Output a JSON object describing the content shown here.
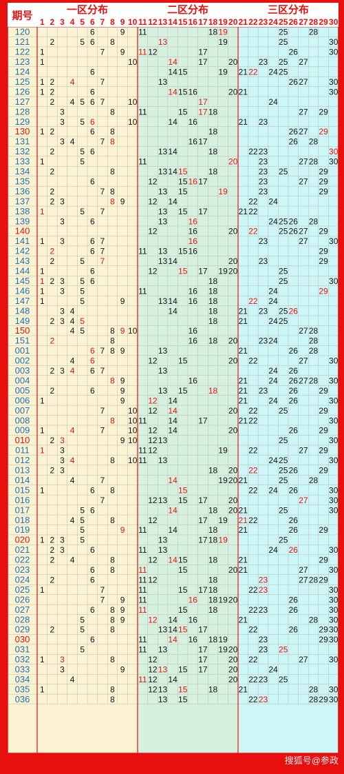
{
  "title": {
    "issue_label": "期号",
    "zone1": "一区分布",
    "zone2": "二区分布",
    "zone3": "三区分布"
  },
  "columns": [
    "1",
    "2",
    "3",
    "4",
    "5",
    "6",
    "7",
    "8",
    "9",
    "10",
    "11",
    "12",
    "13",
    "14",
    "15",
    "16",
    "17",
    "18",
    "19",
    "20",
    "21",
    "22",
    "23",
    "24",
    "25",
    "26",
    "27",
    "28",
    "29",
    "30"
  ],
  "watermark": "搜狐号@参政",
  "colors": {
    "frame": "#e8100e",
    "zone1_bg": "#fbf3d2",
    "zone2_bg": "#d7f1df",
    "zone3_bg": "#cdf6f6",
    "left_bg": "#fbf3d2",
    "issue_text": "#1d6fae",
    "hot": "#e8100e",
    "cold": "#111111",
    "grid": "#b9b9b9"
  },
  "chart_data": {
    "type": "table",
    "title": "",
    "rows": [
      {
        "issue": "120",
        "numbers": [
          6,
          9,
          11,
          18,
          19,
          25,
          28
        ],
        "highlight": [
          19
        ]
      },
      {
        "issue": "121",
        "numbers": [
          2,
          5,
          6,
          8,
          13,
          19,
          25,
          30
        ],
        "highlight": [
          13
        ]
      },
      {
        "issue": "122",
        "numbers": [
          1,
          7,
          9,
          11,
          12,
          17,
          26,
          30
        ],
        "highlight": [
          11
        ]
      },
      {
        "issue": "123",
        "numbers": [
          1,
          10,
          14,
          17,
          20,
          23,
          25,
          27
        ],
        "highlight": [
          14
        ]
      },
      {
        "issue": "124",
        "numbers": [
          6,
          14,
          15,
          19,
          21,
          22,
          24,
          25
        ],
        "highlight": [
          22
        ]
      },
      {
        "issue": "125",
        "numbers": [
          1,
          2,
          4,
          7,
          13,
          26,
          27,
          30
        ],
        "highlight": [
          4
        ]
      },
      {
        "issue": "126",
        "numbers": [
          1,
          2,
          6,
          14,
          15,
          16,
          20,
          21,
          30
        ],
        "highlight": [
          14
        ]
      },
      {
        "issue": "127",
        "numbers": [
          2,
          4,
          5,
          6,
          7,
          10,
          17,
          24
        ],
        "highlight": [
          17
        ]
      },
      {
        "issue": "128",
        "numbers": [
          3,
          8,
          11,
          15,
          17,
          18,
          27,
          29
        ],
        "highlight": [
          17
        ]
      },
      {
        "issue": "129",
        "numbers": [
          3,
          5,
          6,
          10,
          14,
          16,
          21,
          23
        ],
        "highlight": [
          6
        ]
      },
      {
        "issue": "130",
        "numbers": [
          1,
          2,
          6,
          8,
          18,
          26,
          27,
          29
        ],
        "highlight": [
          29
        ]
      },
      {
        "issue": "131",
        "numbers": [
          3,
          4,
          7,
          8,
          16,
          17,
          26,
          28
        ],
        "highlight": [
          8
        ]
      },
      {
        "issue": "132",
        "numbers": [
          2,
          5,
          6,
          13,
          14,
          18,
          22,
          23,
          30
        ],
        "highlight": [
          30
        ]
      },
      {
        "issue": "133",
        "numbers": [
          1,
          5,
          11,
          20,
          23,
          27,
          28,
          30
        ],
        "highlight": [
          20
        ]
      },
      {
        "issue": "134",
        "numbers": [
          2,
          8,
          13,
          14,
          15,
          18,
          23,
          25,
          29
        ],
        "highlight": [
          15
        ]
      },
      {
        "issue": "135",
        "numbers": [
          6,
          12,
          15,
          16,
          17,
          23,
          27,
          29
        ],
        "highlight": [
          16
        ]
      },
      {
        "issue": "136",
        "numbers": [
          2,
          7,
          8,
          13,
          15,
          19,
          23,
          29
        ],
        "highlight": [
          19
        ]
      },
      {
        "issue": "137",
        "numbers": [
          2,
          3,
          8,
          9,
          12,
          14,
          22,
          24
        ],
        "highlight": [
          8
        ]
      },
      {
        "issue": "138",
        "numbers": [
          1,
          5,
          7,
          13,
          15,
          17,
          21,
          22
        ],
        "highlight": [
          1
        ]
      },
      {
        "issue": "139",
        "numbers": [
          3,
          6,
          13,
          16,
          24,
          25,
          26,
          28
        ],
        "highlight": [
          16
        ]
      },
      {
        "issue": "140",
        "numbers": [
          12,
          16,
          20,
          22,
          25,
          26,
          27,
          29
        ],
        "highlight": [
          22
        ]
      },
      {
        "issue": "141",
        "numbers": [
          1,
          3,
          6,
          7,
          16,
          23,
          27,
          30
        ],
        "highlight": [
          16
        ]
      },
      {
        "issue": "142",
        "numbers": [
          2,
          6,
          7,
          11,
          13,
          15,
          16,
          29
        ],
        "highlight": [
          2
        ]
      },
      {
        "issue": "143",
        "numbers": [
          2,
          5,
          7,
          13,
          14,
          20,
          23,
          29
        ],
        "highlight": [
          7
        ]
      },
      {
        "issue": "144",
        "numbers": [
          1,
          6,
          12,
          15,
          17,
          19,
          20,
          25
        ],
        "highlight": [
          15
        ]
      },
      {
        "issue": "145",
        "numbers": [
          1,
          2,
          3,
          5,
          6,
          18,
          25,
          30
        ],
        "highlight": [
          1
        ]
      },
      {
        "issue": "146",
        "numbers": [
          1,
          3,
          5,
          11,
          16,
          18,
          24,
          29
        ],
        "highlight": [
          29
        ]
      },
      {
        "issue": "147",
        "numbers": [
          1,
          5,
          9,
          13,
          14,
          16,
          18,
          22,
          24
        ],
        "highlight": [
          22
        ]
      },
      {
        "issue": "148",
        "numbers": [
          3,
          4,
          14,
          18,
          21,
          23,
          25,
          26
        ],
        "highlight": [
          26
        ]
      },
      {
        "issue": "149",
        "numbers": [
          2,
          3,
          4,
          5,
          18,
          21,
          24,
          25
        ],
        "highlight": [
          5
        ]
      },
      {
        "issue": "150",
        "numbers": [
          4,
          5,
          8,
          9,
          10,
          16,
          27,
          28
        ],
        "highlight": [
          9
        ]
      },
      {
        "issue": "151",
        "numbers": [
          2,
          8,
          16,
          18,
          20,
          23,
          24,
          28
        ],
        "highlight": [
          2
        ]
      },
      {
        "issue": "001",
        "numbers": [
          6,
          7,
          8,
          9,
          13,
          21,
          26,
          28
        ],
        "highlight": [
          6
        ]
      },
      {
        "issue": "002",
        "numbers": [
          4,
          6,
          12,
          15,
          20,
          22,
          27,
          30
        ],
        "highlight": [
          6
        ]
      },
      {
        "issue": "003",
        "numbers": [
          2,
          3,
          4,
          6,
          7,
          13,
          24,
          26
        ],
        "highlight": [
          4
        ]
      },
      {
        "issue": "004",
        "numbers": [
          8,
          9,
          16,
          21,
          24,
          26,
          27,
          28,
          30
        ],
        "highlight": [
          8
        ]
      },
      {
        "issue": "005",
        "numbers": [
          2,
          6,
          9,
          13,
          15,
          18,
          21,
          23,
          26,
          29
        ],
        "highlight": [
          18
        ]
      },
      {
        "issue": "006",
        "numbers": [
          1,
          9,
          12,
          14,
          21,
          24,
          26,
          30
        ],
        "highlight": [
          12
        ]
      },
      {
        "issue": "007",
        "numbers": [
          7,
          10,
          12,
          14,
          20,
          22,
          25,
          29
        ],
        "highlight": [
          14
        ]
      },
      {
        "issue": "008",
        "numbers": [
          8,
          10,
          11,
          14,
          17,
          21,
          22,
          30
        ],
        "highlight": [
          8
        ]
      },
      {
        "issue": "009",
        "numbers": [
          1,
          4,
          7,
          10,
          12,
          14,
          20,
          26,
          29
        ],
        "highlight": [
          4
        ]
      },
      {
        "issue": "010",
        "numbers": [
          2,
          3,
          9,
          10,
          12,
          13,
          25,
          30
        ],
        "highlight": [
          3
        ]
      },
      {
        "issue": "011",
        "numbers": [
          1,
          3,
          11,
          12,
          19,
          22,
          27,
          29
        ],
        "highlight": [
          1
        ]
      },
      {
        "issue": "012",
        "numbers": [
          3,
          4,
          8,
          10,
          11,
          13,
          24,
          25,
          30
        ],
        "highlight": [
          4
        ]
      },
      {
        "issue": "013",
        "numbers": [
          2,
          3,
          18,
          20,
          22,
          25,
          26,
          29
        ],
        "highlight": [
          22
        ]
      },
      {
        "issue": "014",
        "numbers": [
          4,
          7,
          14,
          19,
          20,
          21,
          25,
          28
        ],
        "highlight": [
          14
        ]
      },
      {
        "issue": "015",
        "numbers": [
          1,
          6,
          8,
          15,
          22,
          24,
          26,
          30
        ],
        "highlight": [
          15
        ]
      },
      {
        "issue": "016",
        "numbers": [
          7,
          12,
          13,
          15,
          17,
          20,
          27,
          30
        ],
        "highlight": [
          27
        ]
      },
      {
        "issue": "017",
        "numbers": [
          5,
          6,
          14,
          18,
          20,
          21,
          25,
          30
        ],
        "highlight": [
          14
        ]
      },
      {
        "issue": "018",
        "numbers": [
          4,
          5,
          8,
          12,
          17,
          19,
          21,
          22,
          26
        ],
        "highlight": [
          21
        ]
      },
      {
        "issue": "019",
        "numbers": [
          5,
          9,
          11,
          14,
          18,
          21,
          26,
          29
        ],
        "highlight": [
          9
        ]
      },
      {
        "issue": "020",
        "numbers": [
          1,
          2,
          3,
          5,
          13,
          17,
          18,
          19,
          25
        ],
        "highlight": [
          19
        ]
      },
      {
        "issue": "021",
        "numbers": [
          2,
          3,
          6,
          11,
          13,
          24,
          26,
          30
        ],
        "highlight": [
          26
        ]
      },
      {
        "issue": "022",
        "numbers": [
          2,
          4,
          8,
          12,
          14,
          15,
          18,
          21,
          29
        ],
        "highlight": [
          14
        ]
      },
      {
        "issue": "023",
        "numbers": [
          6,
          8,
          11,
          15,
          20,
          21,
          27,
          30
        ],
        "highlight": [
          11
        ]
      },
      {
        "issue": "024",
        "numbers": [
          2,
          6,
          11,
          12,
          18,
          23,
          27,
          28,
          29
        ],
        "highlight": [
          23
        ]
      },
      {
        "issue": "025",
        "numbers": [
          1,
          7,
          11,
          15,
          17,
          18,
          22,
          23,
          30
        ],
        "highlight": [
          23
        ]
      },
      {
        "issue": "026",
        "numbers": [
          7,
          9,
          11,
          16,
          18,
          19,
          20,
          26,
          30
        ],
        "highlight": [
          16
        ]
      },
      {
        "issue": "027",
        "numbers": [
          6,
          8,
          9,
          11,
          15,
          18,
          22,
          23,
          26,
          30
        ],
        "highlight": [
          11
        ]
      },
      {
        "issue": "028",
        "numbers": [
          5,
          8,
          9,
          12,
          14,
          16,
          21,
          28,
          30
        ],
        "highlight": [
          12
        ]
      },
      {
        "issue": "029",
        "numbers": [
          2,
          5,
          8,
          13,
          14,
          15,
          17,
          22,
          26,
          29,
          30
        ],
        "highlight": [
          15
        ]
      },
      {
        "issue": "030",
        "numbers": [
          6,
          11,
          14,
          16,
          18,
          19,
          23,
          29,
          30
        ],
        "highlight": [
          14
        ]
      },
      {
        "issue": "031",
        "numbers": [
          5,
          11,
          13,
          17,
          19,
          20,
          23,
          25
        ],
        "highlight": [
          25
        ]
      },
      {
        "issue": "032",
        "numbers": [
          1,
          3,
          8,
          12,
          17,
          20,
          22,
          27,
          30
        ],
        "highlight": [
          3
        ]
      },
      {
        "issue": "033",
        "numbers": [
          3,
          9,
          12,
          13,
          15,
          17,
          20,
          24
        ],
        "highlight": [
          13
        ]
      },
      {
        "issue": "034",
        "numbers": [
          4,
          11,
          12,
          14,
          20,
          22,
          23,
          25
        ],
        "highlight": [
          11
        ]
      },
      {
        "issue": "035",
        "numbers": [
          1,
          8,
          12,
          13,
          15,
          18,
          21,
          28,
          30
        ],
        "highlight": [
          15
        ]
      },
      {
        "issue": "036",
        "numbers": [
          8,
          13,
          15,
          22,
          23,
          28,
          29,
          30
        ],
        "highlight": [
          23
        ]
      }
    ]
  }
}
